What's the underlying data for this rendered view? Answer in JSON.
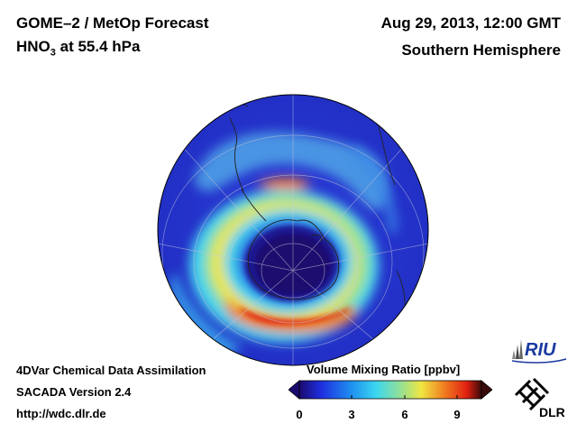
{
  "header": {
    "title_left_1": "GOME–2 / MetOp Forecast",
    "species": "HNO",
    "species_sub": "3",
    "species_suffix": " at 55.4 hPa",
    "date": "Aug 29, 2013, 12:00 GMT",
    "region": "Southern Hemisphere"
  },
  "footer": {
    "line1": "4DVar Chemical Data Assimilation",
    "line2": "SACADA Version 2.4",
    "line3": "http://wdc.dlr.de"
  },
  "colorbar": {
    "title": "Volume Mixing Ratio [ppbv]",
    "ticks": [
      "0",
      "3",
      "6",
      "9"
    ],
    "range": [
      0,
      10.5
    ]
  },
  "logos": {
    "riu": "RIU",
    "dlr": "DLR"
  },
  "colors": {
    "ocean_background": "#2233cc",
    "low": "#1a0a6e",
    "mid": "#3ad6f0",
    "high": "#e02010"
  }
}
